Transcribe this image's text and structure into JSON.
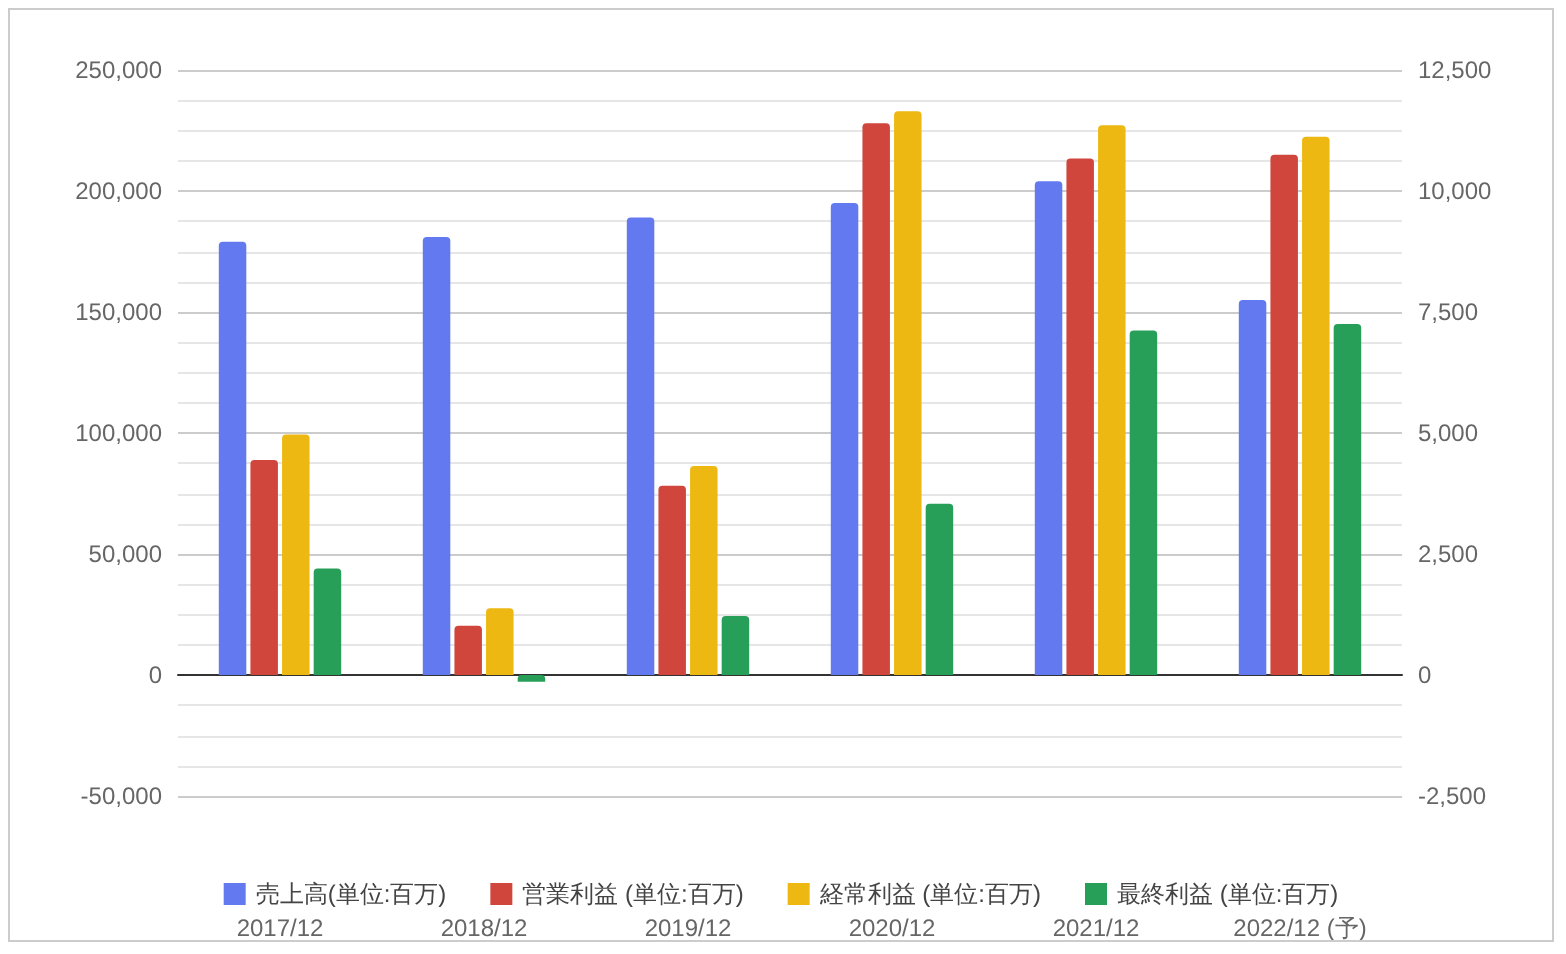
{
  "chart_data": {
    "type": "bar",
    "categories": [
      "2017/12",
      "2018/12",
      "2019/12",
      "2020/12",
      "2021/12",
      "2022/12 (予)"
    ],
    "series": [
      {
        "name": "売上高(単位:百万)",
        "color": "#6379f0",
        "values": [
          179000,
          181000,
          189000,
          195000,
          204000,
          155000
        ]
      },
      {
        "name": "営業利益 (単位:百万)",
        "color": "#d0463c",
        "axis": "y2",
        "values": [
          4440,
          1020,
          3910,
          11400,
          10670,
          10750
        ]
      },
      {
        "name": "経常利益 (単位:百万)",
        "color": "#ecb811",
        "axis": "y2",
        "values": [
          4970,
          1380,
          4320,
          11650,
          11360,
          11120
        ]
      },
      {
        "name": "最終利益 (単位:百万)",
        "color": "#279f58",
        "axis": "y2",
        "values": [
          2200,
          -140,
          1220,
          3540,
          7120,
          7250
        ]
      }
    ],
    "ylim": [
      -50000,
      250000
    ],
    "yticks": [
      {
        "value": -50000,
        "label": "-50,000"
      },
      0,
      {
        "value": 50000,
        "label": "50,000"
      },
      {
        "value": 100000,
        "label": "100,000"
      },
      {
        "value": 150000,
        "label": "150,000"
      },
      {
        "value": 200000,
        "label": "200,000"
      },
      {
        "value": 250000,
        "label": "250,000"
      }
    ],
    "y2lim": [
      -2500,
      12500
    ],
    "y2ticks": [
      {
        "value": -2500,
        "label": "-2,500"
      },
      0,
      {
        "value": 2500,
        "label": "2,500"
      },
      {
        "value": 5000,
        "label": "5,000"
      },
      {
        "value": 7500,
        "label": "7,500"
      },
      {
        "value": 10000,
        "label": "10,000"
      },
      {
        "value": 12500,
        "label": "12,500"
      }
    ],
    "grid": true,
    "legend": "bottom"
  }
}
